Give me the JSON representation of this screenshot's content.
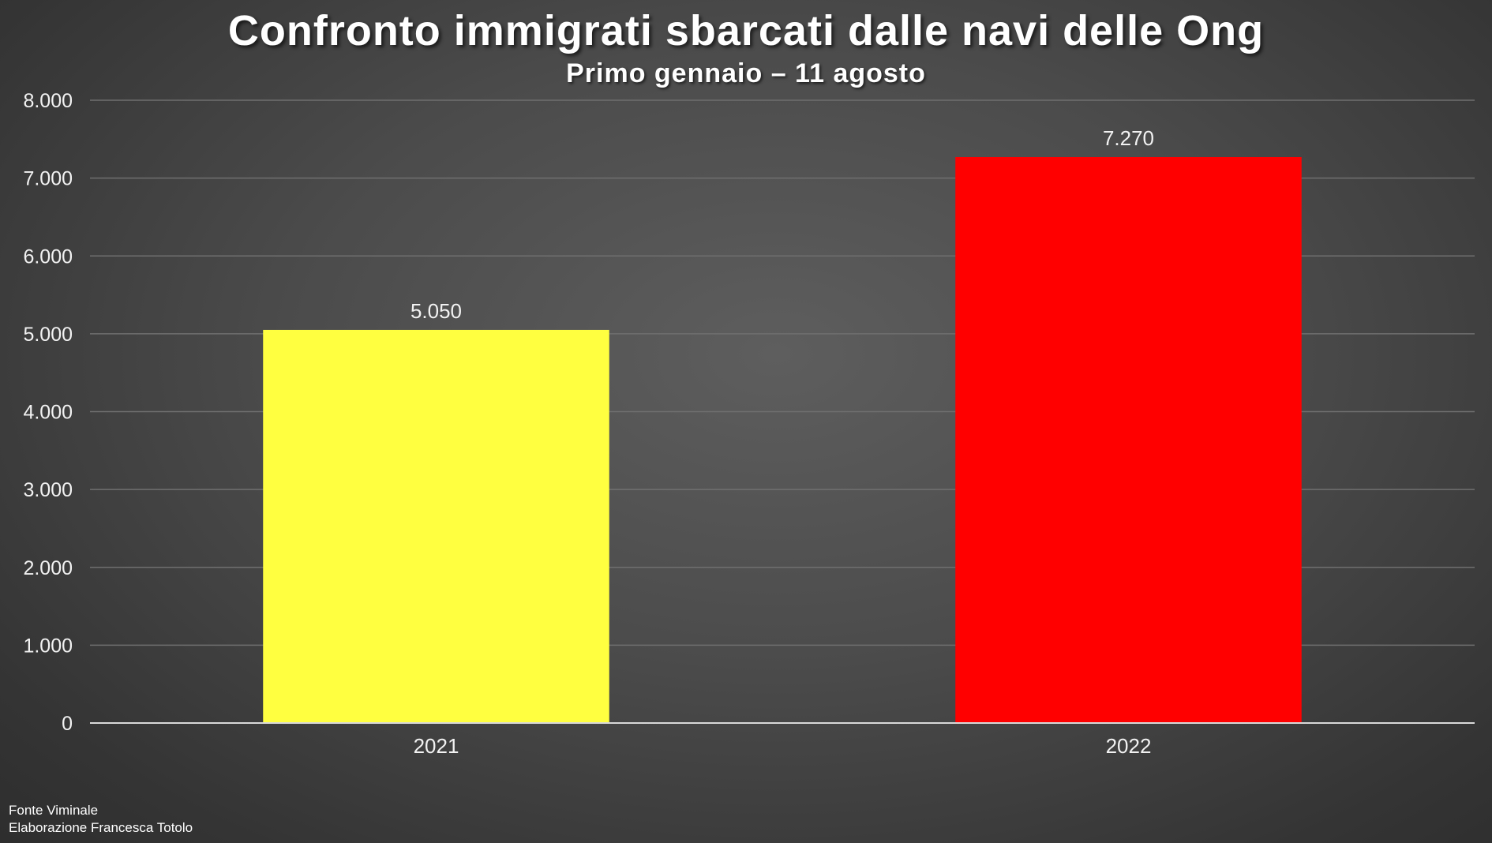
{
  "chart_data": {
    "type": "bar",
    "title": "Confronto immigrati sbarcati dalle navi delle Ong",
    "subtitle": "Primo gennaio – 11 agosto",
    "categories": [
      "2021",
      "2022"
    ],
    "values": [
      5050,
      7270
    ],
    "value_labels": [
      "5.050",
      "7.270"
    ],
    "bar_colors": [
      "#ffff40",
      "#ff0000"
    ],
    "ylim": [
      0,
      8000
    ],
    "y_ticks": [
      0,
      1000,
      2000,
      3000,
      4000,
      5000,
      6000,
      7000,
      8000
    ],
    "y_tick_labels": [
      "0",
      "1.000",
      "2.000",
      "3.000",
      "4.000",
      "5.000",
      "6.000",
      "7.000",
      "8.000"
    ],
    "grid": true,
    "legend": "none"
  },
  "footer": {
    "source": "Fonte Viminale",
    "credit": "Elaborazione Francesca Totolo"
  }
}
